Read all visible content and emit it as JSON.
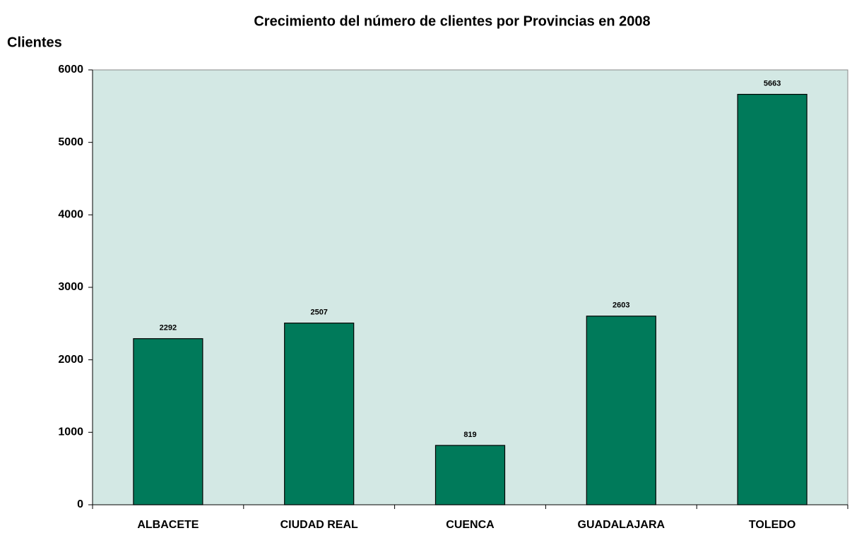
{
  "chart_data": {
    "type": "bar",
    "title": "Crecimiento del número de clientes por Provincias en 2008",
    "y_label": "Clientes",
    "categories": [
      "ALBACETE",
      "CIUDAD REAL",
      "CUENCA",
      "GUADALAJARA",
      "TOLEDO"
    ],
    "values": [
      2292,
      2507,
      819,
      2603,
      5663
    ],
    "color": "#007a5a",
    "ylim": [
      0,
      6000
    ],
    "yticks": [
      0,
      1000,
      2000,
      3000,
      4000,
      5000,
      6000
    ],
    "grid": false,
    "background": "#d3e8e4"
  }
}
